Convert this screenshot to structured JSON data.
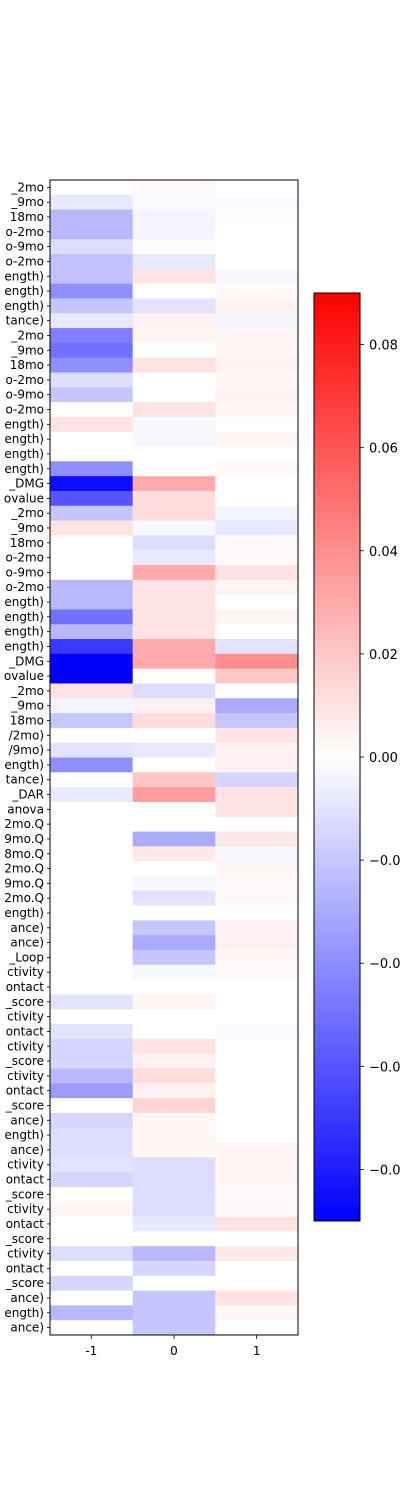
{
  "chart_data": {
    "type": "heatmap",
    "title": "",
    "xlabel": "",
    "ylabel": "",
    "columns": [
      "-1",
      "0",
      "1"
    ],
    "rows": [
      "_2mo",
      "_9mo",
      "18mo",
      "o-2mo",
      "o-9mo",
      "o-2mo",
      "ength)",
      "ength)",
      "ength)",
      "tance)",
      "_2mo",
      "_9mo",
      "18mo",
      "o-2mo",
      "o-9mo",
      "o-2mo",
      "ength)",
      "ength)",
      "ength)",
      "ength)",
      "_DMG",
      "ovalue",
      "_2mo",
      "_9mo",
      "18mo",
      "o-2mo",
      "o-9mo",
      "o-2mo",
      "ength)",
      "ength)",
      "ength)",
      "ength)",
      "_DMG",
      "ovalue",
      "_2mo",
      "_9mo",
      "18mo",
      "/2mo)",
      "/9mo)",
      "ength)",
      "tance)",
      "_DAR",
      "anova",
      "2mo.Q",
      "9mo.Q",
      "8mo.Q",
      "2mo.Q",
      "9mo.Q",
      "2mo.Q",
      "ength)",
      "ance)",
      "ance)",
      "_Loop",
      "ctivity",
      "ontact",
      "_score",
      "ctivity",
      "ontact",
      "ctivity",
      "_score",
      "ctivity",
      "ontact",
      "_score",
      "ance)",
      "ength)",
      "ance)",
      "ctivity",
      "ontact",
      "_score",
      "ctivity",
      "ontact",
      "_score",
      "ctivity",
      "ontact",
      "_score",
      "ance)",
      "ength)",
      "ance)"
    ],
    "values": [
      [
        0.0,
        0.002,
        0.0
      ],
      [
        -0.008,
        -0.002,
        -0.002
      ],
      [
        -0.025,
        -0.004,
        -0.001
      ],
      [
        -0.025,
        -0.004,
        0.0
      ],
      [
        -0.012,
        0.001,
        0.0
      ],
      [
        -0.022,
        -0.008,
        0.0
      ],
      [
        -0.022,
        0.01,
        -0.003
      ],
      [
        -0.04,
        0.0,
        0.002
      ],
      [
        -0.02,
        -0.01,
        0.005
      ],
      [
        -0.008,
        0.005,
        -0.004
      ],
      [
        -0.045,
        0.004,
        0.003
      ],
      [
        -0.05,
        0.0,
        0.003
      ],
      [
        -0.04,
        0.01,
        0.005
      ],
      [
        -0.012,
        0.0,
        0.003
      ],
      [
        -0.02,
        0.0,
        0.005
      ],
      [
        0.0,
        0.01,
        0.003
      ],
      [
        0.01,
        -0.003,
        0.0
      ],
      [
        0.0,
        -0.003,
        0.003
      ],
      [
        0.0,
        0.0,
        0.0
      ],
      [
        -0.04,
        0.0,
        0.002
      ],
      [
        -0.085,
        0.03,
        0.0
      ],
      [
        -0.06,
        0.012,
        0.0
      ],
      [
        -0.02,
        0.012,
        -0.004
      ],
      [
        0.01,
        -0.003,
        -0.008
      ],
      [
        0.0,
        -0.012,
        0.002
      ],
      [
        0.0,
        -0.008,
        0.002
      ],
      [
        0.0,
        0.03,
        0.01
      ],
      [
        -0.025,
        0.01,
        0.004
      ],
      [
        -0.025,
        0.01,
        0.0
      ],
      [
        -0.05,
        0.01,
        0.004
      ],
      [
        -0.025,
        0.01,
        0.0
      ],
      [
        -0.07,
        0.03,
        -0.01
      ],
      [
        -0.13,
        0.03,
        0.04
      ],
      [
        -0.09,
        0.0,
        0.02
      ],
      [
        0.01,
        -0.012,
        0.0
      ],
      [
        -0.004,
        0.005,
        -0.03
      ],
      [
        -0.02,
        0.012,
        -0.02
      ],
      [
        0.0,
        0.0,
        0.01
      ],
      [
        -0.01,
        -0.008,
        0.005
      ],
      [
        -0.04,
        0.0,
        0.005
      ],
      [
        0.0,
        0.02,
        -0.015
      ],
      [
        -0.008,
        0.035,
        0.01
      ],
      [
        0.0,
        0.0,
        0.01
      ],
      [
        0.0,
        0.0,
        0.0
      ],
      [
        0.0,
        -0.03,
        0.008
      ],
      [
        0.0,
        0.008,
        -0.003
      ],
      [
        0.0,
        0.0,
        0.003
      ],
      [
        0.0,
        -0.003,
        0.002
      ],
      [
        0.0,
        -0.01,
        0.002
      ],
      [
        0.0,
        0.0,
        0.0
      ],
      [
        0.0,
        -0.02,
        0.005
      ],
      [
        0.0,
        -0.03,
        0.005
      ],
      [
        0.0,
        -0.02,
        0.003
      ],
      [
        0.0,
        -0.003,
        0.002
      ],
      [
        0.0,
        0.0,
        0.0
      ],
      [
        -0.01,
        0.004,
        0.0
      ],
      [
        0.0,
        0.0,
        0.0
      ],
      [
        -0.01,
        0.0,
        -0.002
      ],
      [
        -0.015,
        0.01,
        0.0
      ],
      [
        -0.015,
        0.005,
        0.0
      ],
      [
        -0.025,
        0.012,
        0.0
      ],
      [
        -0.035,
        0.005,
        0.0
      ],
      [
        0.0,
        0.015,
        0.0
      ],
      [
        -0.015,
        0.003,
        0.0
      ],
      [
        -0.012,
        0.003,
        0.0
      ],
      [
        -0.012,
        0.003,
        0.003
      ],
      [
        -0.01,
        -0.012,
        0.003
      ],
      [
        -0.015,
        -0.012,
        0.003
      ],
      [
        0.0,
        -0.012,
        0.002
      ],
      [
        0.003,
        -0.012,
        0.002
      ],
      [
        0.0,
        -0.008,
        0.01
      ],
      [
        0.0,
        0.0,
        0.0
      ],
      [
        -0.012,
        -0.025,
        0.008
      ],
      [
        0.0,
        -0.015,
        0.0
      ],
      [
        -0.015,
        0.0,
        0.0
      ],
      [
        0.0,
        -0.02,
        0.01
      ],
      [
        -0.025,
        -0.02,
        0.003
      ],
      [
        0.0,
        -0.02,
        0.0
      ]
    ],
    "vmin": -0.09,
    "vmax": 0.09,
    "colormap": [
      "#0000ff",
      "#ffffff",
      "#ff0000"
    ],
    "colorbar_ticks": [
      {
        "value": 0.08,
        "label": "0.08"
      },
      {
        "value": 0.06,
        "label": "0.06"
      },
      {
        "value": 0.04,
        "label": "0.04"
      },
      {
        "value": 0.02,
        "label": "0.02"
      },
      {
        "value": 0.0,
        "label": "0.00"
      },
      {
        "value": -0.02,
        "label": "−0.0"
      },
      {
        "value": -0.04,
        "label": "−0.0"
      },
      {
        "value": -0.06,
        "label": "−0.0"
      },
      {
        "value": -0.08,
        "label": "−0.0"
      }
    ]
  }
}
